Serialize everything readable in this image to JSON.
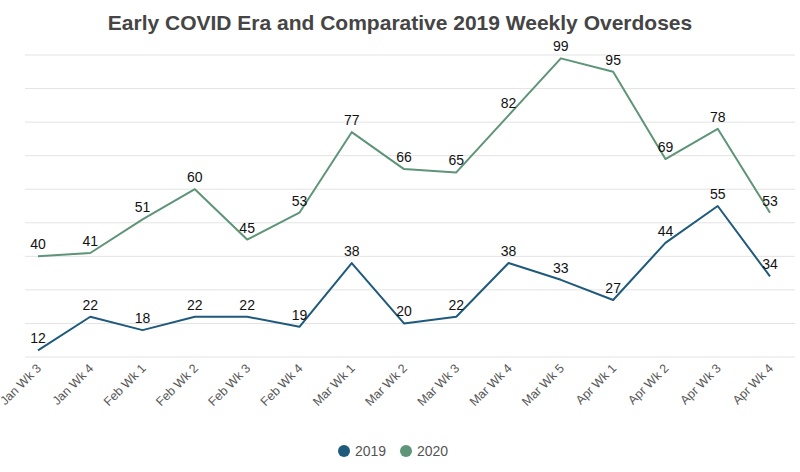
{
  "chart_data": {
    "type": "line",
    "title": "Early COVID Era and Comparative 2019 Weekly Overdoses",
    "categories": [
      "Jan Wk 3",
      "Jan Wk 4",
      "Feb Wk 1",
      "Feb Wk 2",
      "Feb Wk 3",
      "Feb Wk 4",
      "Mar Wk 1",
      "Mar Wk 2",
      "Mar Wk 3",
      "Mar Wk 4",
      "Mar Wk 5",
      "Apr Wk 1",
      "Apr Wk 2",
      "Apr Wk 3",
      "Apr Wk 4"
    ],
    "series": [
      {
        "name": "2019",
        "color": "#1e5a7c",
        "values": [
          12,
          22,
          18,
          22,
          22,
          19,
          38,
          20,
          22,
          38,
          33,
          27,
          44,
          55,
          34
        ]
      },
      {
        "name": "2020",
        "color": "#5e9478",
        "values": [
          40,
          41,
          51,
          60,
          45,
          53,
          77,
          66,
          65,
          82,
          99,
          95,
          69,
          78,
          53
        ]
      }
    ],
    "ylim": [
      10,
      100
    ],
    "yticks": [
      10,
      20,
      30,
      40,
      50,
      60,
      70,
      80,
      90,
      100
    ],
    "grid": true,
    "legend": "bottom",
    "data_labels": true,
    "tick_labels": "x"
  }
}
